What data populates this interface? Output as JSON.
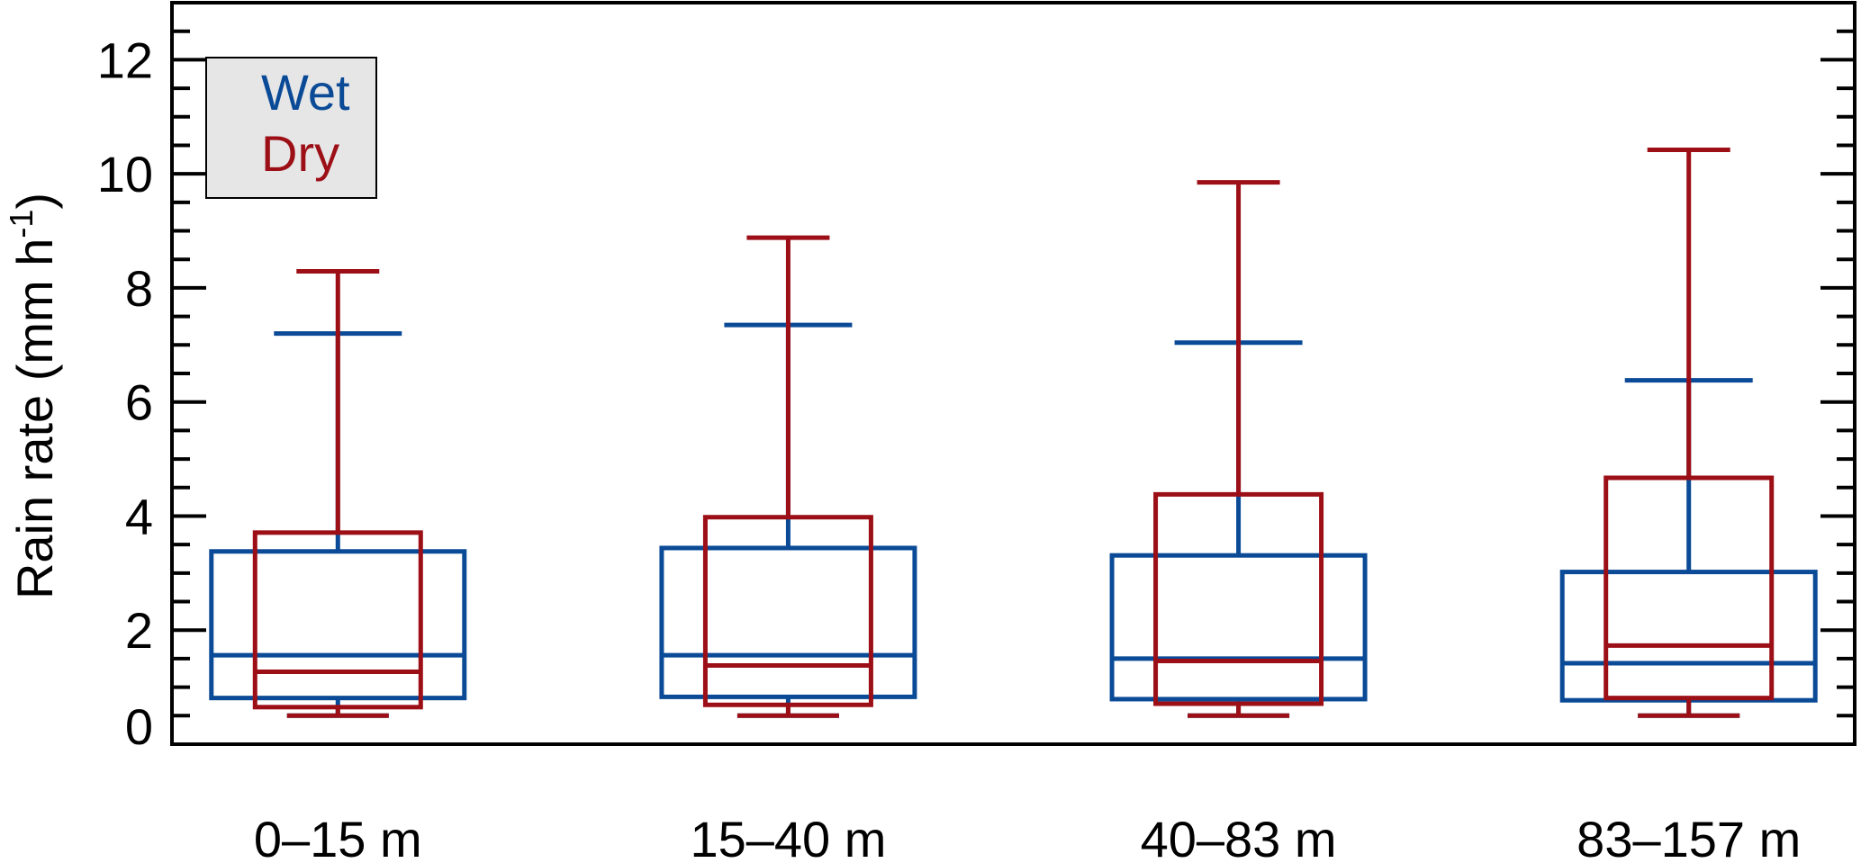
{
  "chart_data": {
    "type": "box",
    "title": "",
    "xlabel": "",
    "ylabel": "Rain rate  (mm h",
    "ylabel_sup": "-1",
    "ylabel_close": ")",
    "ylim": [
      0,
      13
    ],
    "yticks": [
      0,
      2,
      4,
      6,
      8,
      10,
      12
    ],
    "grid": false,
    "legend": {
      "placement": "top-left",
      "entries": [
        "Wet",
        "Dry"
      ]
    },
    "categories": [
      "0–15 m",
      "15–40 m",
      "40–83 m",
      "83–157 m"
    ],
    "series": [
      {
        "name": "Wet",
        "color": "#0a4a96",
        "boxes": [
          {
            "whisker_low": 0.5,
            "q1": 0.81,
            "median": 1.56,
            "q3": 3.38,
            "whisker_high": 7.2
          },
          {
            "whisker_low": 0.5,
            "q1": 0.83,
            "median": 1.56,
            "q3": 3.44,
            "whisker_high": 7.35
          },
          {
            "whisker_low": 0.5,
            "q1": 0.79,
            "median": 1.5,
            "q3": 3.31,
            "whisker_high": 7.04
          },
          {
            "whisker_low": 0.5,
            "q1": 0.77,
            "median": 1.42,
            "q3": 3.02,
            "whisker_high": 6.38
          }
        ]
      },
      {
        "name": "Dry",
        "color": "#9c0f16",
        "boxes": [
          {
            "whisker_low": 0.5,
            "q1": 0.65,
            "median": 1.27,
            "q3": 3.71,
            "whisker_high": 8.29
          },
          {
            "whisker_low": 0.5,
            "q1": 0.69,
            "median": 1.38,
            "q3": 3.98,
            "whisker_high": 8.88
          },
          {
            "whisker_low": 0.5,
            "q1": 0.71,
            "median": 1.46,
            "q3": 4.38,
            "whisker_high": 9.85
          },
          {
            "whisker_low": 0.5,
            "q1": 0.81,
            "median": 1.73,
            "q3": 4.67,
            "whisker_high": 10.42
          }
        ]
      }
    ]
  }
}
